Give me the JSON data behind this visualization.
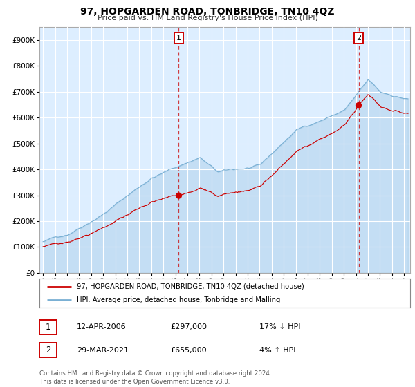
{
  "title": "97, HOPGARDEN ROAD, TONBRIDGE, TN10 4QZ",
  "subtitle": "Price paid vs. HM Land Registry's House Price Index (HPI)",
  "legend_line1": "97, HOPGARDEN ROAD, TONBRIDGE, TN10 4QZ (detached house)",
  "legend_line2": "HPI: Average price, detached house, Tonbridge and Malling",
  "table_row1_num": "1",
  "table_row1_date": "12-APR-2006",
  "table_row1_price": "£297,000",
  "table_row1_hpi": "17% ↓ HPI",
  "table_row2_num": "2",
  "table_row2_date": "29-MAR-2021",
  "table_row2_price": "£655,000",
  "table_row2_hpi": "4% ↑ HPI",
  "footer": "Contains HM Land Registry data © Crown copyright and database right 2024.\nThis data is licensed under the Open Government Licence v3.0.",
  "red_line_color": "#cc0000",
  "blue_line_color": "#7ab0d4",
  "bg_fill_color": "#ddeeff",
  "vline1_color": "#cc0000",
  "vline2_color": "#cc0000",
  "marker_color": "#cc0000",
  "ylim": [
    0,
    950000
  ],
  "xlim_start": 1994.7,
  "xlim_end": 2025.5,
  "purchase1_x": 2006.28,
  "purchase1_y": 297000,
  "purchase2_x": 2021.23,
  "purchase2_y": 655000,
  "yticks": [
    0,
    100000,
    200000,
    300000,
    400000,
    500000,
    600000,
    700000,
    800000,
    900000
  ],
  "hpi_seed": 42,
  "prop_seed": 7
}
